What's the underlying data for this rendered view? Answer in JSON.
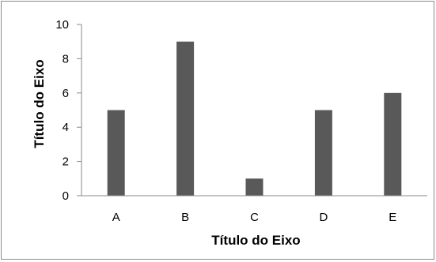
{
  "chart_data": {
    "type": "bar",
    "categories": [
      "A",
      "B",
      "C",
      "D",
      "E"
    ],
    "values": [
      5,
      9,
      1,
      5,
      6
    ],
    "xlabel": "Título do Eixo",
    "ylabel": "Título do Eixo",
    "ylim": [
      0,
      10
    ],
    "yticks": [
      "0",
      "2",
      "4",
      "6",
      "8",
      "10"
    ],
    "bar_color": "#595959",
    "grid": false,
    "legend": "none"
  }
}
